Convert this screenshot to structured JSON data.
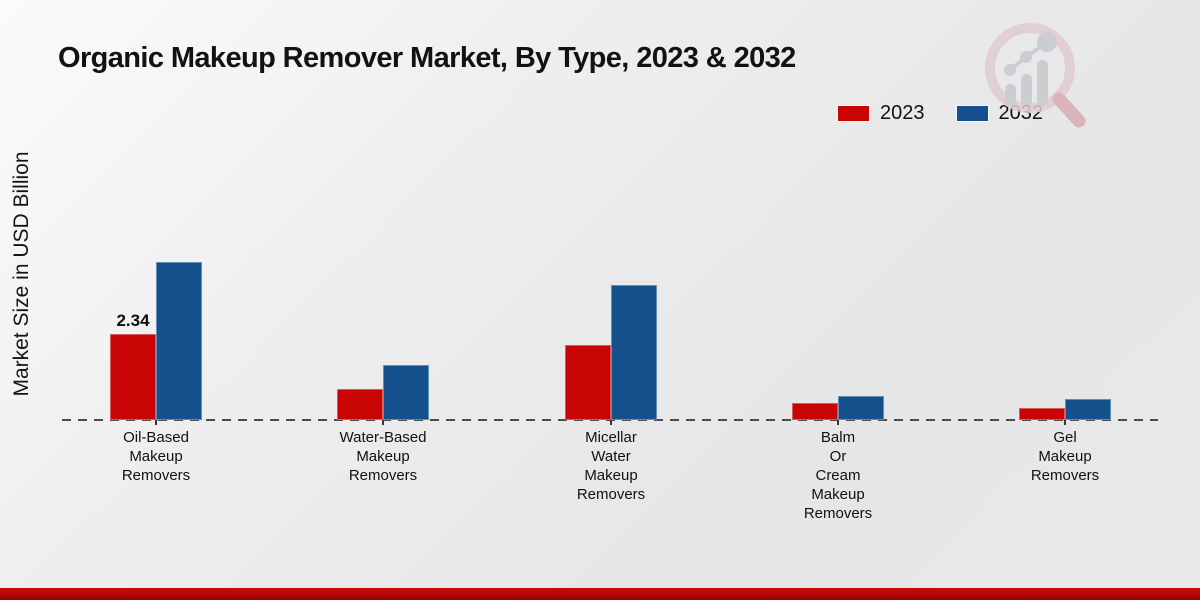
{
  "title": "Organic Makeup Remover Market, By Type, 2023 & 2032",
  "ylabel": "Market Size in USD Billion",
  "legend": {
    "items": [
      {
        "label": "2023",
        "color": "#c80404"
      },
      {
        "label": "2032",
        "color": "#14508c"
      }
    ]
  },
  "logo": {
    "name": "market-research-magnifier-watermark"
  },
  "footer": {
    "accent_color": "#b30606"
  },
  "chart_data": {
    "type": "bar",
    "title": "Organic Makeup Remover Market, By Type, 2023 & 2032",
    "xlabel": "",
    "ylabel": "Market Size in USD Billion",
    "ylim": [
      0,
      4.5
    ],
    "grid": false,
    "baseline_style": "dashed",
    "legend_position": "top-right",
    "categories": [
      "Oil-Based Makeup Removers",
      "Water-Based Makeup Removers",
      "Micellar Water Makeup Removers",
      "Balm Or Cream Makeup Removers",
      "Gel Makeup Removers"
    ],
    "categories_wrapped": [
      [
        "Oil-Based",
        "Makeup",
        "Removers"
      ],
      [
        "Water-Based",
        "Makeup",
        "Removers"
      ],
      [
        "Micellar",
        "Water",
        "Makeup",
        "Removers"
      ],
      [
        "Balm",
        "Or",
        "Cream",
        "Makeup",
        "Removers"
      ],
      [
        "Gel",
        "Makeup",
        "Removers"
      ]
    ],
    "series": [
      {
        "name": "2023",
        "color": "#c80404",
        "values": [
          2.34,
          0.85,
          2.05,
          0.45,
          0.33
        ]
      },
      {
        "name": "2032",
        "color": "#14508c",
        "values": [
          4.3,
          1.5,
          3.68,
          0.65,
          0.57
        ]
      }
    ],
    "annotations": [
      {
        "series": "2023",
        "category_index": 0,
        "text": "2.34"
      }
    ]
  }
}
